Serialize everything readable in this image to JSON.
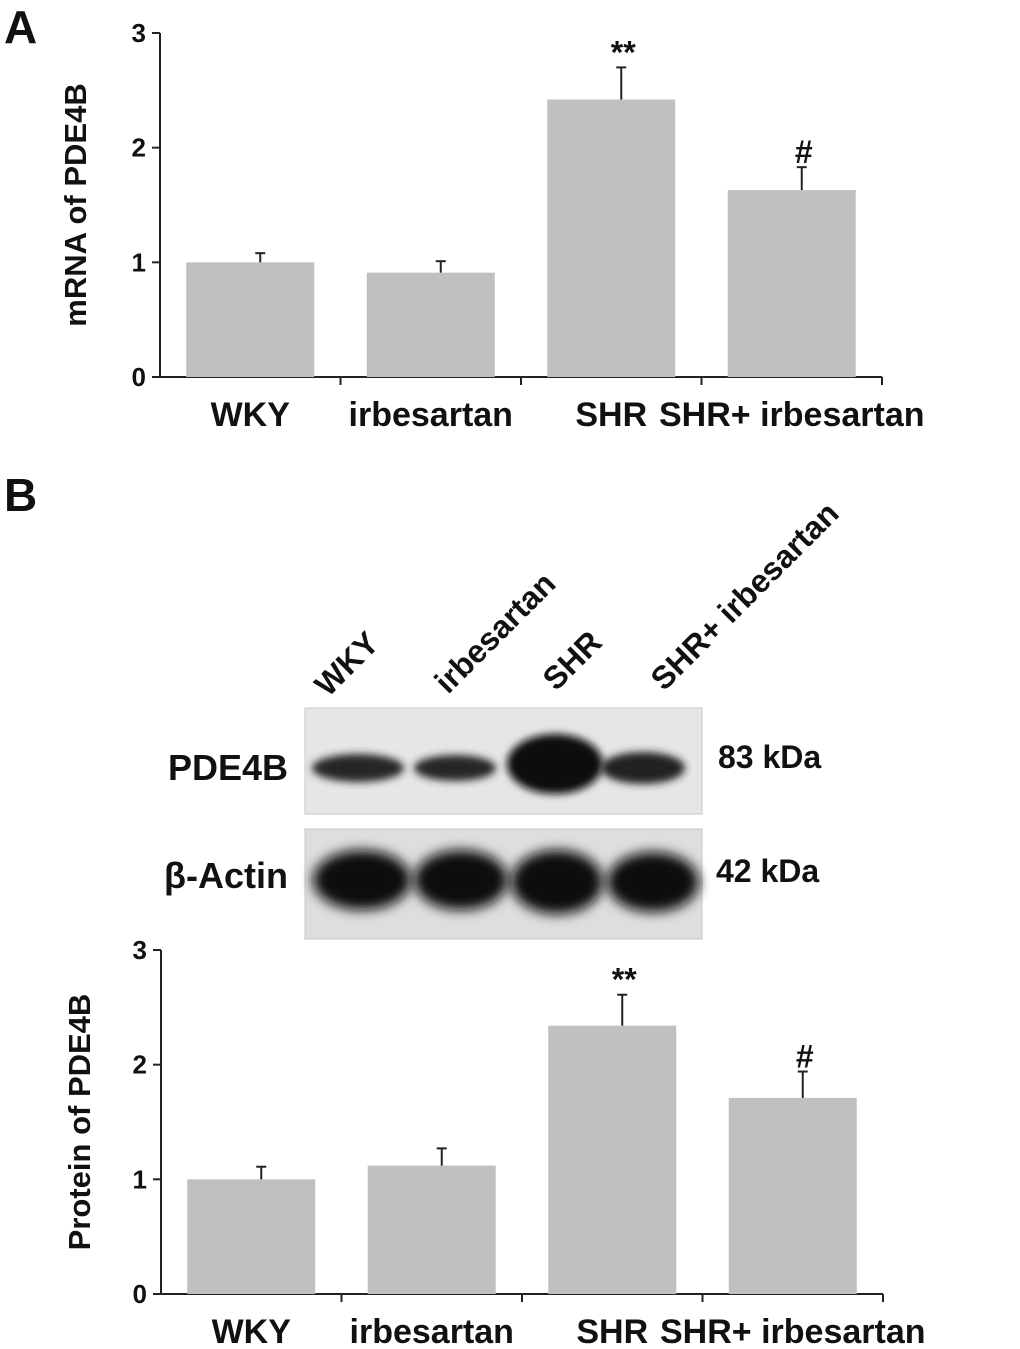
{
  "panel_a_letter": "A",
  "panel_b_letter": "B",
  "chart_data": [
    {
      "type": "bar",
      "categories": [
        "WKY",
        "irbesartan",
        "SHR",
        "SHR+ irbesartan"
      ],
      "values": [
        1.0,
        0.91,
        2.42,
        1.63
      ],
      "errors": [
        0.08,
        0.1,
        0.28,
        0.2
      ],
      "annotations": [
        "",
        "",
        "**",
        "#"
      ],
      "title": "",
      "xlabel": "",
      "ylabel": "mRNA of PDE4B",
      "ylim": [
        0,
        3
      ],
      "yticks": [
        "0",
        "1",
        "2",
        "3"
      ],
      "bar_color": "#c0c0c0",
      "grid": false
    },
    {
      "type": "bar",
      "categories": [
        "WKY",
        "irbesartan",
        "SHR",
        "SHR+ irbesartan"
      ],
      "values": [
        1.0,
        1.12,
        2.34,
        1.71
      ],
      "errors": [
        0.11,
        0.15,
        0.27,
        0.23
      ],
      "annotations": [
        "",
        "",
        "**",
        "#"
      ],
      "title": "",
      "xlabel": "",
      "ylabel": "Protein of PDE4B",
      "ylim": [
        0,
        3
      ],
      "yticks": [
        "0",
        "1",
        "2",
        "3"
      ],
      "bar_color": "#c0c0c0",
      "grid": false
    }
  ],
  "blot": {
    "lane_labels": [
      "WKY",
      "irbesartan",
      "SHR",
      "SHR+ irbesartan"
    ],
    "rows": [
      {
        "label": "PDE4B",
        "size": "83 kDa"
      },
      {
        "label": "β-Actin",
        "size": "42 kDa"
      }
    ]
  }
}
